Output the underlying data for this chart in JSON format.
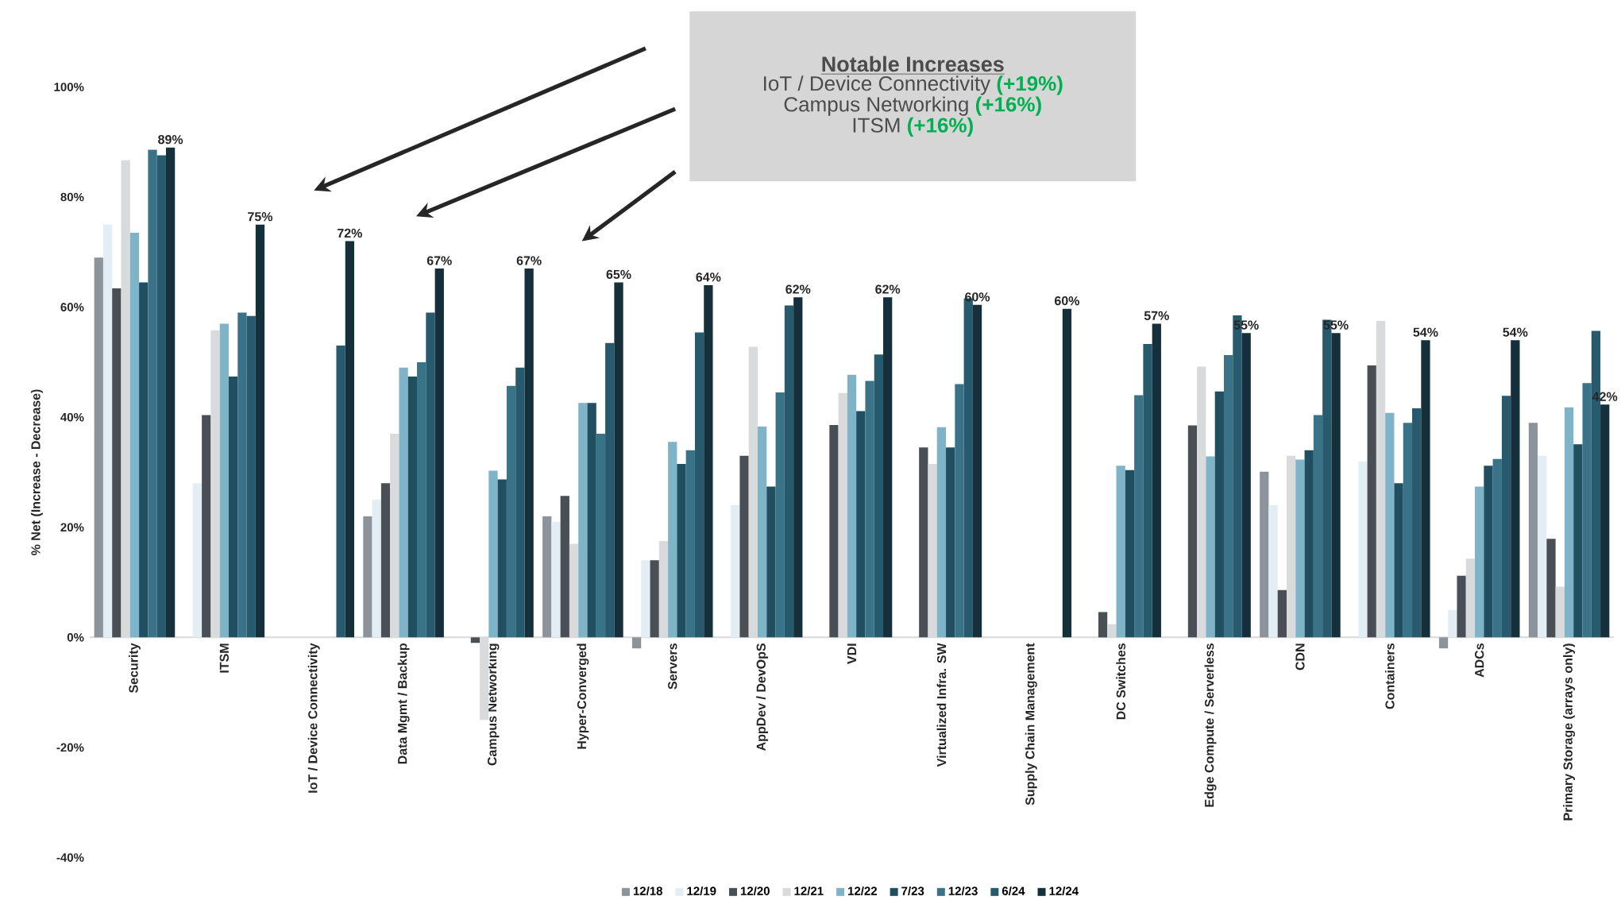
{
  "chart_data": {
    "type": "bar",
    "categories": [
      "Security",
      "ITSM",
      "IoT / Device Connectivity",
      "Data Mgmt / Backup",
      "Campus Networking",
      "Hyper-Converged",
      "Servers",
      "AppDev / DevOpS",
      "VDI",
      "Virtualized Infra. SW",
      "Supply Chain Management",
      "DC Switches",
      "Edge Compute / Serverless",
      "CDN",
      "Containers",
      "ADCs",
      "Primary Storage (arrays only)"
    ],
    "ylabel": "% Net (Increase - Decrease)",
    "ylim": [
      -40,
      100
    ],
    "yticks": [
      {
        "value": -40,
        "label": "-40%"
      },
      {
        "value": -20,
        "label": "-20%"
      },
      {
        "value": 0,
        "label": "0%"
      },
      {
        "value": 20,
        "label": "20%"
      },
      {
        "value": 40,
        "label": "40%"
      },
      {
        "value": 60,
        "label": "60%"
      },
      {
        "value": 80,
        "label": "80%"
      },
      {
        "value": 100,
        "label": "100%"
      }
    ],
    "legend": "bottom",
    "series": [
      {
        "name": "12/18",
        "color": "#8c939b",
        "values": [
          69,
          null,
          null,
          22,
          null,
          22,
          -2,
          null,
          null,
          null,
          null,
          null,
          null,
          30.1,
          null,
          -2,
          39
        ]
      },
      {
        "name": "12/19",
        "color": "#e2eef3",
        "values": [
          75,
          28,
          null,
          25,
          null,
          21,
          14,
          24,
          null,
          null,
          null,
          null,
          null,
          24,
          32,
          5,
          33
        ]
      },
      {
        "name": "12/20",
        "color": "#4a4f56",
        "values": [
          63.4,
          40.4,
          null,
          28,
          -1,
          25.7,
          14,
          33,
          38.6,
          34.5,
          null,
          4.6,
          38.5,
          8.6,
          49.4,
          11.2,
          17.9
        ]
      },
      {
        "name": "12/21",
        "color": "#d8dadc",
        "values": [
          86.7,
          55.8,
          null,
          37,
          -15,
          17,
          17.5,
          52.8,
          44.4,
          31.5,
          null,
          2.4,
          49.2,
          33,
          57.5,
          14.3,
          9.2
        ]
      },
      {
        "name": "12/22",
        "color": "#7fb3c8",
        "values": [
          73.5,
          57,
          null,
          49,
          30.3,
          42.6,
          35.5,
          38.3,
          47.7,
          38.2,
          null,
          31.2,
          32.9,
          32.3,
          40.8,
          27.4,
          41.8
        ]
      },
      {
        "name": "7/23",
        "color": "#1f4f60",
        "values": [
          64.5,
          47.4,
          null,
          47.4,
          28.7,
          42.6,
          31.5,
          27.4,
          41.1,
          34.5,
          null,
          30.4,
          44.7,
          34,
          28,
          31.2,
          35.1
        ]
      },
      {
        "name": "12/23",
        "color": "#3a7387",
        "values": [
          88.6,
          59,
          null,
          50,
          45.7,
          37,
          34,
          44.5,
          46.6,
          46,
          null,
          44,
          51.3,
          40.4,
          39,
          32.4,
          46.2
        ]
      },
      {
        "name": "6/24",
        "color": "#265a6c",
        "values": [
          87.6,
          58.4,
          53,
          59,
          49,
          53.5,
          55.4,
          60.3,
          51.4,
          61.6,
          null,
          53.3,
          58.5,
          57.7,
          41.6,
          43.9,
          55.7
        ]
      },
      {
        "name": "12/24",
        "color": "#15303b",
        "values": [
          89,
          75,
          72,
          67,
          67,
          64.5,
          64,
          61.8,
          61.8,
          60.4,
          59.7,
          57,
          55.3,
          55.3,
          54,
          54,
          42.3
        ],
        "value_labels": [
          "89%",
          "75%",
          "72%",
          "67%",
          "67%",
          "65%",
          "64%",
          "62%",
          "62%",
          "60%",
          "60%",
          "57%",
          "55%",
          "55%",
          "54%",
          "54%",
          "42%"
        ]
      }
    ],
    "annotations": [
      "**Notable Increases**",
      "IoT / Device Connectivity **(+19%)**",
      "Campus Networking **(+16%)**",
      "ITSM **(+16%)**"
    ]
  }
}
